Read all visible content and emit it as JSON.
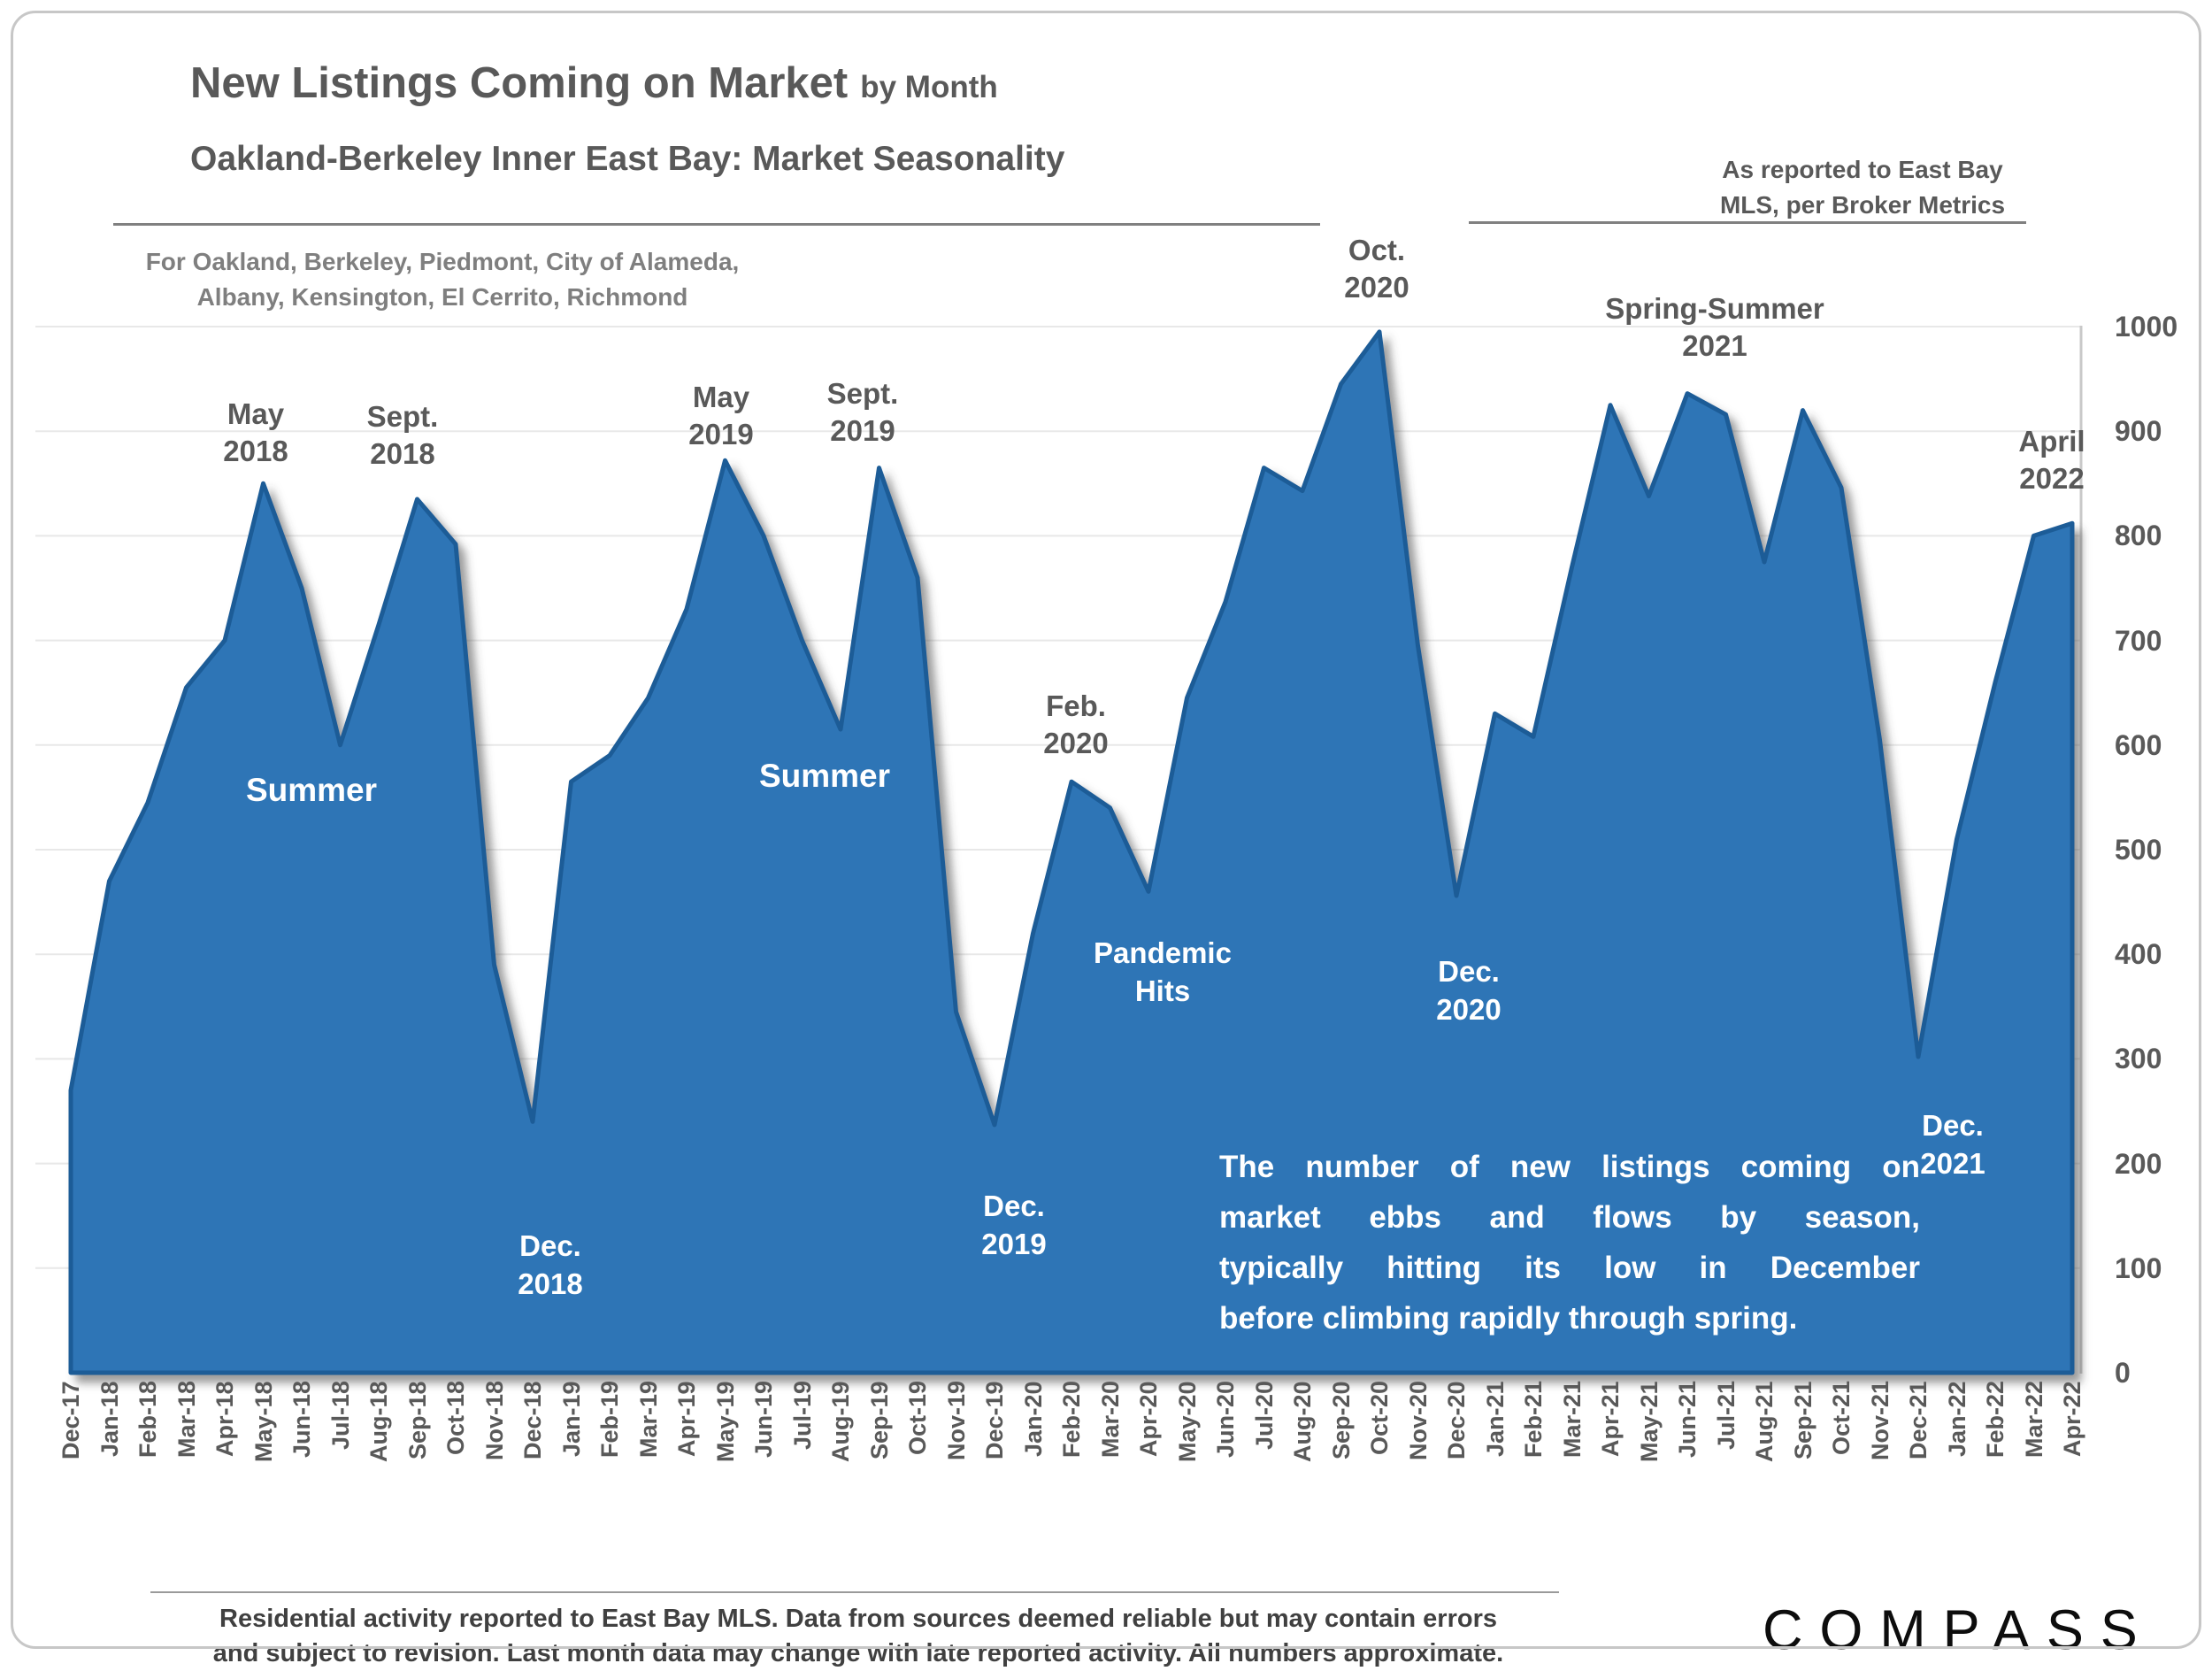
{
  "slide": {
    "title": "New Listings Coming on Market",
    "title_suffix": "by Month",
    "subtitle": "Oakland-Berkeley Inner East Bay: Market Seasonality",
    "region_note": "For Oakland, Berkeley, Piedmont, City of Alameda,\nAlbany, Kensington, El Cerrito, Richmond",
    "source_note": "As reported to East Bay\nMLS, per Broker Metrics",
    "footer": "Residential activity reported to East Bay MLS. Data from sources deemed reliable but may contain errors\nand subject to revision. Last month data may change with late reported activity. All numbers approximate.",
    "logo_text": "COMPASS"
  },
  "chart_data": {
    "type": "area",
    "title": "New Listings Coming on Market by Month",
    "subtitle": "Oakland-Berkeley Inner East Bay: Market Seasonality",
    "x": [
      "Dec-17",
      "Jan-18",
      "Feb-18",
      "Mar-18",
      "Apr-18",
      "May-18",
      "Jun-18",
      "Jul-18",
      "Aug-18",
      "Sep-18",
      "Oct-18",
      "Nov-18",
      "Dec-18",
      "Jan-19",
      "Feb-19",
      "Mar-19",
      "Apr-19",
      "May-19",
      "Jun-19",
      "Jul-19",
      "Aug-19",
      "Sep-19",
      "Oct-19",
      "Nov-19",
      "Dec-19",
      "Jan-20",
      "Feb-20",
      "Mar-20",
      "Apr-20",
      "May-20",
      "Jun-20",
      "Jul-20",
      "Aug-20",
      "Sep-20",
      "Oct-20",
      "Nov-20",
      "Dec-20",
      "Jan-21",
      "Feb-21",
      "Mar-21",
      "Apr-21",
      "May-21",
      "Jun-21",
      "Jul-21",
      "Aug-21",
      "Sep-21",
      "Oct-21",
      "Nov-21",
      "Dec-21",
      "Jan-22",
      "Feb-22",
      "Mar-22",
      "Apr-22"
    ],
    "values": [
      270,
      470,
      545,
      655,
      700,
      850,
      750,
      600,
      715,
      835,
      792,
      390,
      240,
      565,
      590,
      645,
      730,
      872,
      800,
      700,
      615,
      865,
      760,
      345,
      237,
      420,
      565,
      540,
      460,
      645,
      737,
      865,
      843,
      945,
      995,
      695,
      456,
      630,
      608,
      770,
      925,
      838,
      936,
      916,
      775,
      920,
      846,
      605,
      302,
      510,
      660,
      800,
      812
    ],
    "ylim": [
      0,
      1000
    ],
    "yticks": [
      0,
      100,
      200,
      300,
      400,
      500,
      600,
      700,
      800,
      900,
      1000
    ],
    "grid": "horizontal-faint",
    "legend": "none",
    "area_color": "#2E75B6",
    "edge_color": "#1E5C97",
    "annotations": [
      {
        "id": "may-2018",
        "text": "May\n2018",
        "style": "dark"
      },
      {
        "id": "sept-2018",
        "text": "Sept.\n2018",
        "style": "dark"
      },
      {
        "id": "summer-2018",
        "text": "Summer",
        "style": "white"
      },
      {
        "id": "dec-2018",
        "text": "Dec.\n2018",
        "style": "white"
      },
      {
        "id": "may-2019",
        "text": "May\n2019",
        "style": "dark"
      },
      {
        "id": "sept-2019",
        "text": "Sept.\n2019",
        "style": "dark"
      },
      {
        "id": "summer-2019",
        "text": "Summer",
        "style": "white"
      },
      {
        "id": "dec-2019",
        "text": "Dec.\n2019",
        "style": "white"
      },
      {
        "id": "feb-2020",
        "text": "Feb.\n2020",
        "style": "dark"
      },
      {
        "id": "pandemic-hits",
        "text": "Pandemic\nHits",
        "style": "white"
      },
      {
        "id": "oct-2020",
        "text": "Oct.\n2020",
        "style": "dark"
      },
      {
        "id": "dec-2020",
        "text": "Dec.\n2020",
        "style": "white"
      },
      {
        "id": "spring-summer-2021",
        "text": "Spring-Summer\n2021",
        "style": "dark"
      },
      {
        "id": "dec-2021",
        "text": "Dec.\n2021",
        "style": "white"
      },
      {
        "id": "april-2022",
        "text": "April\n2022",
        "style": "dark"
      }
    ],
    "narrative_lines": [
      "The number of new listings coming on",
      "market ebbs and flows by season,",
      "typically hitting its low in December",
      "before climbing rapidly through spring."
    ]
  }
}
